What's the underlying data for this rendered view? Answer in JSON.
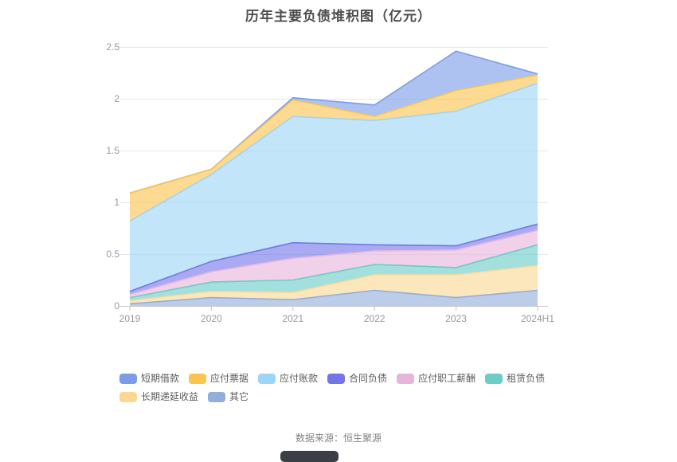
{
  "title": "历年主要负债堆积图（亿元）",
  "footer": {
    "source": "数据来源：恒生聚源"
  },
  "axes": {
    "y_ticks": [
      "0",
      "0.5",
      "1",
      "1.5",
      "2",
      "2.5"
    ],
    "x_ticks": [
      "2019",
      "2020",
      "2021",
      "2022",
      "2023",
      "2024H1"
    ]
  },
  "chart_data": {
    "type": "area",
    "stacked": true,
    "title": "历年主要负债堆积图（亿元）",
    "unit": "亿元",
    "categories": [
      "2019",
      "2020",
      "2021",
      "2022",
      "2023",
      "2024H1"
    ],
    "ylim": [
      0,
      2.5
    ],
    "grid": true,
    "legend_position": "bottom",
    "stack_note": "series listed in legend order; visual stack bottom-to-top is the reverse of this list",
    "series": [
      {
        "key": "short-term-loans",
        "name": "短期借款",
        "color": "#7B9DE8",
        "values": [
          0,
          0,
          0.02,
          0.11,
          0.38,
          0.01
        ]
      },
      {
        "key": "notes-payable",
        "name": "应付票据",
        "color": "#FAC44F",
        "values": [
          0.27,
          0.05,
          0.16,
          0.04,
          0.2,
          0.08
        ]
      },
      {
        "key": "accounts-payable",
        "name": "应付账款",
        "color": "#9CD5F7",
        "values": [
          0.68,
          0.84,
          1.22,
          1.2,
          1.3,
          1.36
        ]
      },
      {
        "key": "contract-liabilities",
        "name": "合同负债",
        "color": "#7476E8",
        "values": [
          0.03,
          0.1,
          0.15,
          0.06,
          0.04,
          0.06
        ]
      },
      {
        "key": "payroll-payable",
        "name": "应付职工薪酬",
        "color": "#E6B5DC",
        "values": [
          0.03,
          0.1,
          0.21,
          0.13,
          0.17,
          0.14
        ]
      },
      {
        "key": "lease-liabilities",
        "name": "租赁负债",
        "color": "#6BCCC8",
        "values": [
          0.03,
          0.09,
          0.12,
          0.1,
          0.07,
          0.2
        ]
      },
      {
        "key": "deferred-income",
        "name": "长期递延收益",
        "color": "#FAD894",
        "values": [
          0.03,
          0.06,
          0.07,
          0.15,
          0.22,
          0.24
        ]
      },
      {
        "key": "others",
        "name": "其它",
        "color": "#92AEDA",
        "values": [
          0.02,
          0.08,
          0.06,
          0.15,
          0.08,
          0.15
        ]
      }
    ]
  }
}
